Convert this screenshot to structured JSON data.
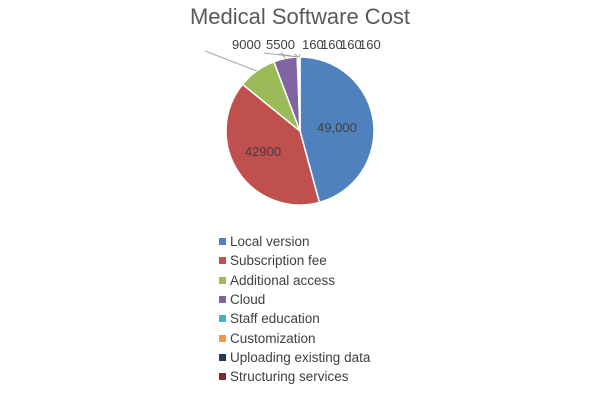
{
  "chart_data": {
    "type": "pie",
    "title": "Medical Software Cost",
    "categories": [
      "Local version",
      "Subscription fee",
      "Additional access",
      "Cloud",
      "Staff education",
      "Customization",
      "Uploading existing data",
      "Structuring services"
    ],
    "values": [
      49000,
      42900,
      9000,
      5500,
      160,
      160,
      160,
      160
    ],
    "data_labels": [
      "49,000",
      "42900",
      "9000",
      "5500",
      "160",
      "160",
      "160",
      "160"
    ],
    "colors": [
      "#4F81BD",
      "#C0504D",
      "#9BBB59",
      "#8064A2",
      "#4BACC6",
      "#F79646",
      "#1F3864",
      "#7B2C2C"
    ],
    "legend_position": "bottom"
  }
}
